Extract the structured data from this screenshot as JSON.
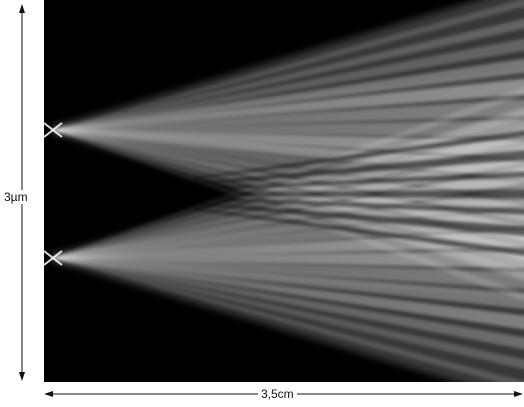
{
  "figure": {
    "vertical_scale_label": "3µm",
    "horizontal_scale_label": "3,5cm",
    "background_color": "#000000",
    "beam_color": "#ffffff",
    "beam_sources": 2
  }
}
